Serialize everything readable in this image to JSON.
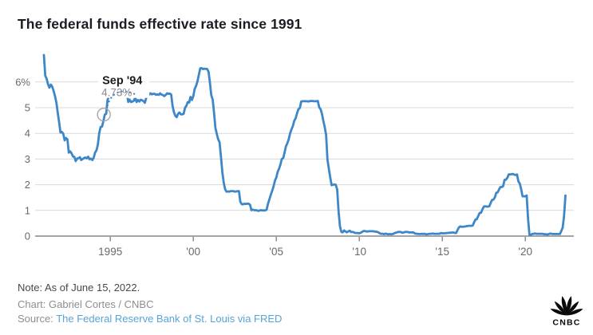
{
  "header": {
    "title": "The federal funds effective rate since 1991"
  },
  "chart_data": {
    "type": "line",
    "title": "The federal funds effective rate since 1991",
    "series_name": "Federal funds effective rate (%)",
    "frequency": "monthly",
    "x_start_year": 1991,
    "x_end_label": "June 15, 2022",
    "ylim": [
      0,
      7.2
    ],
    "grid": true,
    "line_color": "#3d87c9",
    "yticks": [
      {
        "label": "6%",
        "value": 6
      },
      {
        "label": "5",
        "value": 5
      },
      {
        "label": "4",
        "value": 4
      },
      {
        "label": "3",
        "value": 3
      },
      {
        "label": "2",
        "value": 2
      },
      {
        "label": "1",
        "value": 1
      },
      {
        "label": "0",
        "value": 0
      }
    ],
    "xticks": [
      {
        "label": "1995",
        "year": 1995
      },
      {
        "label": "'00",
        "year": 2000
      },
      {
        "label": "'05",
        "year": 2005
      },
      {
        "label": "'10",
        "year": 2010
      },
      {
        "label": "'15",
        "year": 2015
      },
      {
        "label": "'20",
        "year": 2020
      }
    ],
    "annotation": {
      "label": "Sep '94",
      "value_label": "4.73%",
      "value": 4.73,
      "year_fraction": 1994.708
    },
    "values": [
      7.05,
      6.25,
      6.12,
      5.91,
      5.78,
      5.9,
      5.82,
      5.66,
      5.45,
      5.21,
      4.81,
      4.43,
      4.03,
      4.06,
      3.98,
      3.73,
      3.82,
      3.76,
      3.25,
      3.3,
      3.22,
      3.1,
      3.09,
      2.92,
      3.02,
      3.03,
      3.07,
      2.96,
      3.0,
      3.04,
      3.06,
      3.03,
      3.09,
      2.99,
      3.02,
      2.96,
      3.05,
      3.25,
      3.34,
      3.56,
      4.01,
      4.25,
      4.26,
      4.47,
      4.73,
      4.76,
      5.29,
      5.45,
      5.53,
      5.92,
      5.98,
      6.05,
      6.01,
      6.0,
      5.85,
      5.74,
      5.8,
      5.76,
      5.8,
      5.6,
      5.56,
      5.22,
      5.31,
      5.22,
      5.24,
      5.27,
      5.4,
      5.22,
      5.3,
      5.24,
      5.31,
      5.29,
      5.25,
      5.19,
      5.39,
      5.51,
      5.5,
      5.56,
      5.52,
      5.54,
      5.54,
      5.5,
      5.52,
      5.5,
      5.56,
      5.51,
      5.49,
      5.45,
      5.49,
      5.56,
      5.54,
      5.55,
      5.51,
      5.07,
      4.83,
      4.68,
      4.63,
      4.76,
      4.81,
      4.74,
      4.74,
      4.76,
      4.99,
      5.07,
      5.22,
      5.2,
      5.42,
      5.3,
      5.45,
      5.73,
      5.85,
      6.02,
      6.27,
      6.53,
      6.54,
      6.5,
      6.52,
      6.51,
      6.51,
      6.4,
      5.98,
      5.49,
      5.31,
      4.8,
      4.21,
      3.97,
      3.77,
      3.65,
      3.07,
      2.49,
      2.09,
      1.82,
      1.73,
      1.74,
      1.73,
      1.75,
      1.75,
      1.75,
      1.73,
      1.74,
      1.75,
      1.75,
      1.34,
      1.24,
      1.24,
      1.26,
      1.25,
      1.26,
      1.26,
      1.22,
      1.01,
      1.03,
      1.01,
      1.01,
      1.0,
      0.98,
      1.0,
      1.01,
      1.0,
      1.0,
      1.0,
      1.03,
      1.26,
      1.43,
      1.61,
      1.76,
      1.93,
      2.16,
      2.28,
      2.5,
      2.63,
      2.79,
      3.0,
      3.04,
      3.26,
      3.5,
      3.62,
      3.78,
      4.0,
      4.16,
      4.29,
      4.49,
      4.59,
      4.79,
      4.94,
      4.99,
      5.24,
      5.25,
      5.25,
      5.25,
      5.25,
      5.24,
      5.25,
      5.26,
      5.26,
      5.25,
      5.25,
      5.25,
      5.26,
      5.02,
      4.94,
      4.76,
      4.49,
      4.24,
      3.94,
      2.98,
      2.61,
      2.28,
      1.98,
      2.0,
      2.01,
      2.0,
      1.81,
      0.97,
      0.39,
      0.16,
      0.15,
      0.22,
      0.18,
      0.15,
      0.18,
      0.21,
      0.16,
      0.16,
      0.15,
      0.12,
      0.12,
      0.12,
      0.11,
      0.13,
      0.16,
      0.2,
      0.2,
      0.18,
      0.18,
      0.19,
      0.19,
      0.19,
      0.19,
      0.18,
      0.17,
      0.16,
      0.14,
      0.1,
      0.09,
      0.09,
      0.07,
      0.1,
      0.08,
      0.07,
      0.08,
      0.07,
      0.08,
      0.1,
      0.13,
      0.14,
      0.16,
      0.16,
      0.16,
      0.13,
      0.14,
      0.16,
      0.16,
      0.16,
      0.14,
      0.15,
      0.14,
      0.15,
      0.11,
      0.09,
      0.09,
      0.08,
      0.08,
      0.09,
      0.08,
      0.09,
      0.07,
      0.07,
      0.08,
      0.09,
      0.09,
      0.1,
      0.09,
      0.09,
      0.09,
      0.09,
      0.09,
      0.12,
      0.11,
      0.11,
      0.11,
      0.12,
      0.12,
      0.13,
      0.13,
      0.14,
      0.14,
      0.12,
      0.12,
      0.24,
      0.34,
      0.38,
      0.36,
      0.37,
      0.37,
      0.38,
      0.39,
      0.4,
      0.4,
      0.4,
      0.41,
      0.54,
      0.65,
      0.66,
      0.79,
      0.9,
      0.91,
      1.04,
      1.15,
      1.16,
      1.15,
      1.15,
      1.16,
      1.3,
      1.41,
      1.42,
      1.51,
      1.69,
      1.7,
      1.82,
      1.91,
      1.91,
      1.95,
      2.19,
      2.2,
      2.27,
      2.4,
      2.4,
      2.41,
      2.42,
      2.39,
      2.38,
      2.4,
      2.13,
      2.04,
      1.83,
      1.55,
      1.55,
      1.55,
      1.58,
      0.65,
      0.05,
      0.05,
      0.08,
      0.09,
      0.1,
      0.09,
      0.09,
      0.09,
      0.09,
      0.09,
      0.08,
      0.07,
      0.07,
      0.06,
      0.08,
      0.1,
      0.09,
      0.08,
      0.08,
      0.08,
      0.08,
      0.08,
      0.08,
      0.2,
      0.33,
      0.77,
      1.58
    ]
  },
  "footer": {
    "note": "Note: As of June 15, 2022.",
    "credit": "Chart: Gabriel Cortes / CNBC",
    "source_prefix": "Source: ",
    "source_link": "The Federal Reserve Bank of St. Louis via FRED"
  },
  "logo": {
    "text": "CNBC",
    "icon": "cnbc-peacock-icon"
  },
  "colors": {
    "line": "#3d87c9",
    "grid": "#d8d9da",
    "axis": "#85878a",
    "axis_text": "#66696d",
    "annotation_label": "#1b1b1b",
    "annotation_value": "#8a8a8a",
    "marker_ring": "#a8a8a8",
    "link": "#57a4d8"
  }
}
